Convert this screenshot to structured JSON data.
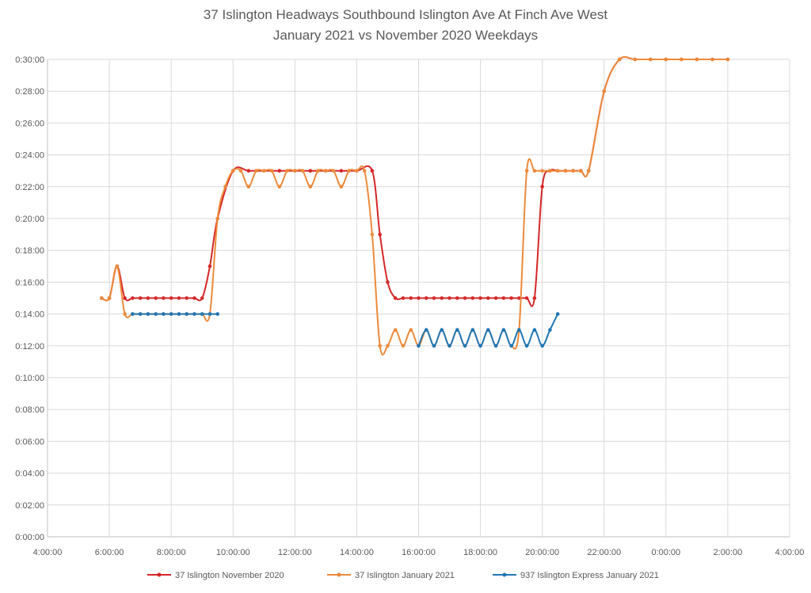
{
  "chart_data": {
    "type": "line",
    "title_lines": [
      "37 Islington Headways Southbound Islington Ave At Finch Ave West",
      "January 2021 vs November 2020 Weekdays"
    ],
    "xlabel": "",
    "ylabel": "",
    "x_axis": {
      "unit": "hours since midnight (26 = 2:00 next day)",
      "min": 4,
      "max": 28,
      "step": 2,
      "tick_labels": [
        "4:00:00",
        "6:00:00",
        "8:00:00",
        "10:00:00",
        "12:00:00",
        "14:00:00",
        "16:00:00",
        "18:00:00",
        "20:00:00",
        "22:00:00",
        "0:00:00",
        "2:00:00",
        "4:00:00"
      ]
    },
    "y_axis": {
      "unit": "minutes of headway",
      "min": 0,
      "max": 30,
      "step": 2,
      "tick_labels": [
        "0:00:00",
        "0:02:00",
        "0:04:00",
        "0:06:00",
        "0:08:00",
        "0:10:00",
        "0:12:00",
        "0:14:00",
        "0:16:00",
        "0:18:00",
        "0:20:00",
        "0:22:00",
        "0:24:00",
        "0:26:00",
        "0:28:00",
        "0:30:00"
      ]
    },
    "grid": true,
    "legend_position": "bottom",
    "series": [
      {
        "name": "37 Islington November 2020",
        "color": "#d62728",
        "points": [
          [
            5.75,
            15
          ],
          [
            6.0,
            15
          ],
          [
            6.25,
            17
          ],
          [
            6.5,
            15
          ],
          [
            6.75,
            15
          ],
          [
            7.0,
            15
          ],
          [
            7.25,
            15
          ],
          [
            7.5,
            15
          ],
          [
            7.75,
            15
          ],
          [
            8.0,
            15
          ],
          [
            8.25,
            15
          ],
          [
            8.5,
            15
          ],
          [
            8.75,
            15
          ],
          [
            9.0,
            15
          ],
          [
            9.25,
            17
          ],
          [
            9.5,
            20
          ],
          [
            10.0,
            23
          ],
          [
            10.5,
            23
          ],
          [
            11.0,
            23
          ],
          [
            11.5,
            23
          ],
          [
            12.0,
            23
          ],
          [
            12.5,
            23
          ],
          [
            13.0,
            23
          ],
          [
            13.5,
            23
          ],
          [
            14.0,
            23
          ],
          [
            14.5,
            23
          ],
          [
            14.75,
            19
          ],
          [
            15.0,
            16
          ],
          [
            15.25,
            15
          ],
          [
            15.5,
            15
          ],
          [
            15.75,
            15
          ],
          [
            16.0,
            15
          ],
          [
            16.25,
            15
          ],
          [
            16.5,
            15
          ],
          [
            16.75,
            15
          ],
          [
            17.0,
            15
          ],
          [
            17.25,
            15
          ],
          [
            17.5,
            15
          ],
          [
            17.75,
            15
          ],
          [
            18.0,
            15
          ],
          [
            18.25,
            15
          ],
          [
            18.5,
            15
          ],
          [
            18.75,
            15
          ],
          [
            19.0,
            15
          ],
          [
            19.25,
            15
          ],
          [
            19.5,
            15
          ],
          [
            19.75,
            15
          ],
          [
            20.0,
            22
          ],
          [
            20.25,
            23
          ],
          [
            20.5,
            23
          ],
          [
            20.75,
            23
          ],
          [
            21.0,
            23
          ],
          [
            21.25,
            23
          ],
          [
            21.5,
            23
          ],
          [
            22.0,
            28
          ],
          [
            22.5,
            30
          ],
          [
            23.0,
            30
          ],
          [
            23.5,
            30
          ],
          [
            24.0,
            30
          ],
          [
            24.5,
            30
          ],
          [
            25.0,
            30
          ],
          [
            25.5,
            30
          ],
          [
            26.0,
            30
          ]
        ]
      },
      {
        "name": "37 Islington January 2021",
        "color": "#ed8a3b",
        "points": [
          [
            5.75,
            15
          ],
          [
            6.0,
            15
          ],
          [
            6.25,
            17
          ],
          [
            6.5,
            14
          ],
          [
            6.75,
            14
          ],
          [
            7.0,
            14
          ],
          [
            7.25,
            14
          ],
          [
            7.5,
            14
          ],
          [
            7.75,
            14
          ],
          [
            8.0,
            14
          ],
          [
            8.25,
            14
          ],
          [
            8.5,
            14
          ],
          [
            8.75,
            14
          ],
          [
            9.0,
            14
          ],
          [
            9.25,
            14
          ],
          [
            9.5,
            20
          ],
          [
            9.75,
            22
          ],
          [
            10.0,
            23
          ],
          [
            10.25,
            23
          ],
          [
            10.5,
            22
          ],
          [
            10.75,
            23
          ],
          [
            11.0,
            23
          ],
          [
            11.25,
            23
          ],
          [
            11.5,
            22
          ],
          [
            11.75,
            23
          ],
          [
            12.0,
            23
          ],
          [
            12.25,
            23
          ],
          [
            12.5,
            22
          ],
          [
            12.75,
            23
          ],
          [
            13.0,
            23
          ],
          [
            13.25,
            23
          ],
          [
            13.5,
            22
          ],
          [
            13.75,
            23
          ],
          [
            14.0,
            23
          ],
          [
            14.25,
            23
          ],
          [
            14.5,
            19
          ],
          [
            14.75,
            12
          ],
          [
            15.0,
            12
          ],
          [
            15.25,
            13
          ],
          [
            15.5,
            12
          ],
          [
            15.75,
            13
          ],
          [
            16.0,
            12
          ],
          [
            16.25,
            13
          ],
          [
            16.5,
            12
          ],
          [
            16.75,
            13
          ],
          [
            17.0,
            12
          ],
          [
            17.25,
            13
          ],
          [
            17.5,
            12
          ],
          [
            17.75,
            13
          ],
          [
            18.0,
            12
          ],
          [
            18.25,
            13
          ],
          [
            18.5,
            12
          ],
          [
            18.75,
            13
          ],
          [
            19.0,
            12
          ],
          [
            19.25,
            13
          ],
          [
            19.5,
            23
          ],
          [
            19.75,
            23
          ],
          [
            20.0,
            23
          ],
          [
            20.25,
            23
          ],
          [
            20.5,
            23
          ],
          [
            20.75,
            23
          ],
          [
            21.0,
            23
          ],
          [
            21.25,
            23
          ],
          [
            21.5,
            23
          ],
          [
            22.0,
            28
          ],
          [
            22.5,
            30
          ],
          [
            23.0,
            30
          ],
          [
            23.5,
            30
          ],
          [
            24.0,
            30
          ],
          [
            24.5,
            30
          ],
          [
            25.0,
            30
          ],
          [
            25.5,
            30
          ],
          [
            26.0,
            30
          ]
        ]
      },
      {
        "name": "937 Islington Express January 2021",
        "color": "#1f77b4",
        "points": [
          [
            6.75,
            14
          ],
          [
            7.0,
            14
          ],
          [
            7.25,
            14
          ],
          [
            7.5,
            14
          ],
          [
            7.75,
            14
          ],
          [
            8.0,
            14
          ],
          [
            8.25,
            14
          ],
          [
            8.5,
            14
          ],
          [
            8.75,
            14
          ],
          [
            9.0,
            14
          ],
          [
            9.25,
            14
          ],
          [
            9.5,
            14
          ],
          [
            16.0,
            12
          ],
          [
            16.25,
            13
          ],
          [
            16.5,
            12
          ],
          [
            16.75,
            13
          ],
          [
            17.0,
            12
          ],
          [
            17.25,
            13
          ],
          [
            17.5,
            12
          ],
          [
            17.75,
            13
          ],
          [
            18.0,
            12
          ],
          [
            18.25,
            13
          ],
          [
            18.5,
            12
          ],
          [
            18.75,
            13
          ],
          [
            19.0,
            12
          ],
          [
            19.25,
            13
          ],
          [
            19.5,
            12
          ],
          [
            19.75,
            13
          ],
          [
            20.0,
            12
          ],
          [
            20.25,
            13
          ],
          [
            20.5,
            14
          ]
        ]
      }
    ]
  }
}
